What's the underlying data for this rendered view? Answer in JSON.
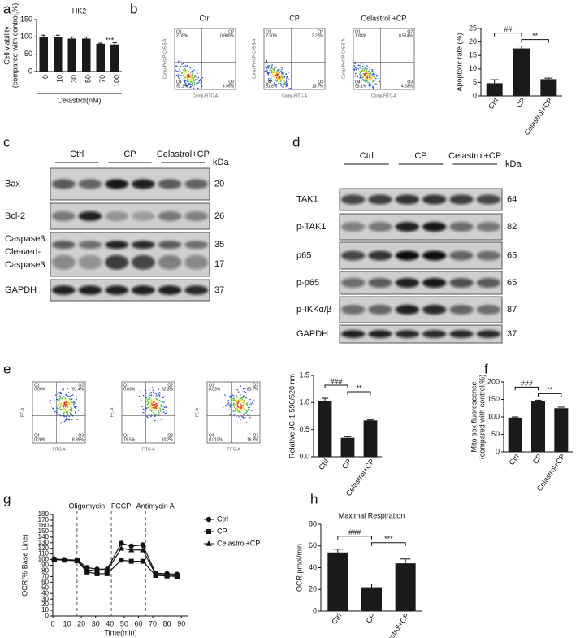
{
  "panel_labels": [
    "a",
    "b",
    "c",
    "d",
    "e",
    "f",
    "g",
    "h"
  ],
  "chart_data": [
    {
      "type": "bar",
      "title": "HK2",
      "categories": [
        "0",
        "10",
        "30",
        "50",
        "70",
        "100"
      ],
      "values": [
        100,
        99,
        95,
        95,
        80,
        78
      ],
      "errors": [
        5,
        6,
        5,
        5,
        2,
        5
      ],
      "ylabel": [
        "Cell viability",
        "(compared with control,%)"
      ],
      "xlabel": "Celastrol(nM)",
      "ylim": [
        0,
        150
      ],
      "yticks": [
        0,
        50,
        100,
        150
      ],
      "color": "#1a1a1a",
      "annotations": [
        "***"
      ]
    },
    {
      "type": "bar",
      "categories": [
        "Ctrl",
        "CP",
        "Celastrol+CP"
      ],
      "values": [
        4.7,
        17.6,
        6.2
      ],
      "errors": [
        1.3,
        0.9,
        0.4
      ],
      "ylabel": [
        "Apoptotic rate (%)"
      ],
      "ylim": [
        0,
        25
      ],
      "yticks": [
        0,
        5,
        10,
        15,
        20,
        25
      ],
      "color": "#1a1a1a",
      "annotations": [
        "##",
        "**"
      ]
    },
    {
      "type": "bar",
      "categories": [
        "Ctrl",
        "CP",
        "Celastrol+CP"
      ],
      "values": [
        1.03,
        0.35,
        0.67
      ],
      "errors": [
        0.05,
        0.02,
        0.01
      ],
      "ylabel": [
        "Relative JC-1 590/520 nm"
      ],
      "ylim": [
        0,
        1.5
      ],
      "yticks": [
        {
          "value": 0,
          "label": "0.0"
        },
        {
          "value": 0.5,
          "label": "0.5"
        },
        {
          "value": 1,
          "label": "1.0"
        },
        {
          "value": 1.5,
          "label": "1.5"
        }
      ],
      "color": "#1a1a1a",
      "annotations": [
        "###",
        "**"
      ]
    },
    {
      "type": "bar",
      "categories": [
        "Ctrl",
        "CP",
        "Celastrol+CP"
      ],
      "values": [
        98,
        145,
        125
      ],
      "errors": [
        2,
        3,
        3
      ],
      "ylabel": [
        "Mito sox fluorescence",
        "(compared with control,%)"
      ],
      "ylim": [
        0,
        200
      ],
      "yticks": [
        0,
        50,
        100,
        150,
        200
      ],
      "color": "#1a1a1a",
      "annotations": [
        "###",
        "**"
      ]
    },
    {
      "type": "line",
      "x": [
        1,
        8,
        17,
        24,
        31,
        38,
        48,
        55,
        63,
        72,
        80,
        87
      ],
      "series": [
        {
          "name": "Ctrl",
          "color": "#111111",
          "marker": "circle",
          "values": [
            101,
            100,
            99,
            86,
            83,
            83,
            129,
            124,
            126,
            76,
            75,
            74
          ]
        },
        {
          "name": "CP",
          "color": "#111111",
          "marker": "square",
          "values": [
            100,
            99,
            98,
            78,
            75,
            75,
            99,
            97,
            97,
            72,
            71,
            70
          ]
        },
        {
          "name": "Celastrol+CP",
          "color": "#111111",
          "marker": "triangle",
          "values": [
            101,
            99,
            98,
            82,
            80,
            80,
            120,
            117,
            117,
            74,
            73,
            72
          ]
        }
      ],
      "ylabel": "OCR(% Base Line)",
      "xlabel": "Time(min)",
      "xlim": [
        0,
        95
      ],
      "ylim": [
        0,
        180
      ],
      "xticks": [
        0,
        10,
        20,
        30,
        40,
        50,
        60,
        70,
        80,
        90
      ],
      "yticks": [
        0,
        10,
        20,
        30,
        40,
        50,
        60,
        70,
        80,
        90,
        100,
        110,
        120,
        130,
        140,
        150,
        160,
        170,
        180
      ],
      "markers": [
        {
          "x": 17,
          "label": "Oligomycin"
        },
        {
          "x": 41,
          "label": "FCCP"
        },
        {
          "x": 65,
          "label": "Antimycin A"
        }
      ],
      "legend": "right"
    },
    {
      "type": "bar",
      "title": "Maximal Respiration",
      "categories": [
        "Ctrl",
        "CP",
        "Celastrol+CP"
      ],
      "values": [
        54,
        22,
        44
      ],
      "errors": [
        3,
        3,
        4
      ],
      "ylabel": [
        "OCR pmol/min"
      ],
      "ylim": [
        0,
        80
      ],
      "yticks": [
        0,
        20,
        40,
        60,
        80
      ],
      "color": "#1a1a1a",
      "annotations": [
        "###",
        "***"
      ]
    }
  ],
  "flow_b": {
    "xlabel": "Comp-FITC-A",
    "ylabel": "Comp-PerCP-Cy5-5-A",
    "plots": [
      {
        "title": "Ctrl",
        "quadrants": [
          {
            "name": "Q1",
            "value": "2.05%"
          },
          {
            "name": "Q2",
            "value": "0.800%"
          },
          {
            "name": "Q4",
            "value": "92.2%"
          },
          {
            "name": "Q3",
            "value": "4.95%"
          }
        ]
      },
      {
        "title": "CP",
        "quadrants": [
          {
            "name": "Q1",
            "value": "2.20%"
          },
          {
            "name": "Q2",
            "value": "2.26%"
          },
          {
            "name": "Q4",
            "value": "81.8%"
          },
          {
            "name": "Q3",
            "value": "13.7%"
          }
        ]
      },
      {
        "title": "Celastrol +CP",
        "quadrants": [
          {
            "name": "Q1",
            "value": "1.84%"
          },
          {
            "name": "Q2",
            "value": "0.514%"
          },
          {
            "name": "Q4",
            "value": "93.1%"
          },
          {
            "name": "Q3",
            "value": "4.53%"
          }
        ]
      }
    ]
  },
  "flow_e": {
    "xlabel": "FITC-A",
    "ylabel": "PE-A",
    "plots": [
      {
        "quadrants": [
          {
            "name": "Q1",
            "value": "0.00%"
          },
          {
            "name": "Q2",
            "value": "91.4%"
          },
          {
            "name": "Q4",
            "value": "0.20%"
          },
          {
            "name": "Q3",
            "value": "8.39%"
          }
        ]
      },
      {
        "quadrants": [
          {
            "name": "Q1",
            "value": "0.03%"
          },
          {
            "name": "Q2",
            "value": "82.3%"
          },
          {
            "name": "Q4",
            "value": "19.5%"
          },
          {
            "name": "Q3",
            "value": "10.2%"
          }
        ]
      },
      {
        "quadrants": [
          {
            "name": "Q1",
            "value": "0.03%"
          },
          {
            "name": "Q2",
            "value": "83.7%"
          },
          {
            "name": "Q4",
            "value": "0.010%"
          },
          {
            "name": "Q3",
            "value": "16.3%"
          }
        ]
      }
    ]
  },
  "blot_c": {
    "groups": [
      "Ctrl",
      "CP",
      "Celastrol+CP"
    ],
    "unit": "kDa",
    "rows": [
      {
        "labels": [
          "Bax"
        ],
        "kda": [
          "20"
        ]
      },
      {
        "labels": [
          "Bcl-2"
        ],
        "kda": [
          "26"
        ]
      },
      {
        "labels": [
          "Caspase3",
          "Cleaved-",
          "Caspase3"
        ],
        "kda": [
          "35",
          "17"
        ]
      },
      {
        "labels": [
          "GAPDH"
        ],
        "kda": [
          "37"
        ]
      }
    ]
  },
  "blot_d": {
    "groups": [
      "Ctrl",
      "CP",
      "Celastrol+CP"
    ],
    "unit": "kDa",
    "rows": [
      {
        "labels": [
          "TAK1"
        ],
        "kda": [
          "64"
        ]
      },
      {
        "labels": [
          "p-TAK1"
        ],
        "kda": [
          "82"
        ]
      },
      {
        "labels": [
          "p65"
        ],
        "kda": [
          "65"
        ]
      },
      {
        "labels": [
          "p-p65"
        ],
        "kda": [
          "65"
        ]
      },
      {
        "labels": [
          "p-IKKα/β"
        ],
        "kda": [
          "87"
        ]
      },
      {
        "labels": [
          "GAPDH"
        ],
        "kda": [
          "37"
        ]
      }
    ]
  }
}
